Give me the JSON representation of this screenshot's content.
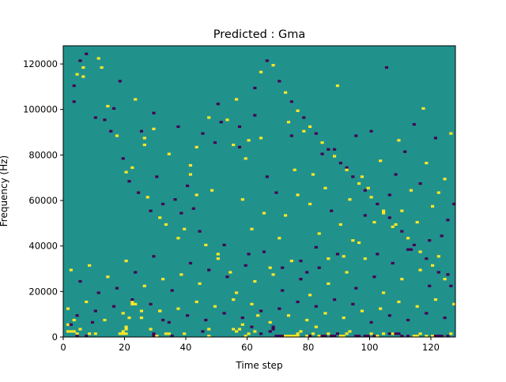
{
  "chart_data": {
    "type": "heatmap",
    "title": "Predicted : Gma",
    "xlabel": "Time step",
    "ylabel": "Frequency (Hz)",
    "xlim": [
      0,
      128
    ],
    "ylim": [
      0,
      128000
    ],
    "xticks": [
      0,
      20,
      40,
      60,
      80,
      100,
      120
    ],
    "yticks": [
      0,
      20000,
      40000,
      60000,
      80000,
      100000,
      120000
    ],
    "n_time_steps": 128,
    "n_freq_bins": 128,
    "grid": false,
    "legend": "none",
    "colormap": "viridis",
    "colors": {
      "background": "#21918c",
      "low": "#440154",
      "high": "#fde725"
    },
    "background_level": 0,
    "levels_note": "cells not listed are background; 1 = yellow (high), -1 = dark purple (low)",
    "cells": [
      [
        1,
        2,
        1
      ],
      [
        2,
        2,
        1
      ],
      [
        3,
        2,
        1
      ],
      [
        1,
        5,
        1
      ],
      [
        2,
        5,
        -1
      ],
      [
        3,
        7,
        1
      ],
      [
        4,
        1,
        1
      ],
      [
        4,
        0,
        -1
      ],
      [
        5,
        3,
        1
      ],
      [
        7,
        0,
        -1
      ],
      [
        8,
        1,
        1
      ],
      [
        9,
        6,
        -1
      ],
      [
        10,
        1,
        1
      ],
      [
        18,
        1,
        1
      ],
      [
        19,
        1,
        1
      ],
      [
        19,
        2,
        1
      ],
      [
        20,
        3,
        1
      ],
      [
        20,
        4,
        1
      ],
      [
        20,
        1,
        1
      ],
      [
        21,
        8,
        1
      ],
      [
        22,
        14,
        1
      ],
      [
        23,
        14,
        1
      ],
      [
        22,
        15,
        1
      ],
      [
        25,
        11,
        1
      ],
      [
        28,
        3,
        1
      ],
      [
        29,
        0,
        -1
      ],
      [
        29,
        1,
        -1
      ],
      [
        30,
        0,
        1
      ],
      [
        31,
        11,
        1
      ],
      [
        32,
        7,
        -1
      ],
      [
        33,
        1,
        1
      ],
      [
        34,
        1,
        1
      ],
      [
        35,
        0,
        -1
      ],
      [
        39,
        1,
        1
      ],
      [
        45,
        2,
        -1
      ],
      [
        47,
        3,
        1
      ],
      [
        47,
        0,
        1
      ],
      [
        55,
        3,
        1
      ],
      [
        56,
        2,
        1
      ],
      [
        57,
        3,
        1
      ],
      [
        58,
        5,
        1
      ],
      [
        59,
        0,
        1
      ],
      [
        60,
        1,
        1
      ],
      [
        61,
        4,
        -1
      ],
      [
        62,
        2,
        1
      ],
      [
        63,
        9,
        1
      ],
      [
        64,
        1,
        -1
      ],
      [
        67,
        2,
        -1
      ],
      [
        68,
        4,
        -1
      ],
      [
        68,
        3,
        -1
      ],
      [
        69,
        0,
        -1
      ],
      [
        70,
        0,
        -1
      ],
      [
        71,
        0,
        -1
      ],
      [
        72,
        0,
        1
      ],
      [
        73,
        0,
        1
      ],
      [
        74,
        0,
        1
      ],
      [
        75,
        0,
        1
      ],
      [
        76,
        0,
        1
      ],
      [
        76,
        1,
        1
      ],
      [
        77,
        2,
        1
      ],
      [
        79,
        0,
        1
      ],
      [
        80,
        0,
        -1
      ],
      [
        81,
        1,
        1
      ],
      [
        82,
        4,
        1
      ],
      [
        83,
        0,
        1
      ],
      [
        84,
        0,
        -1
      ],
      [
        85,
        0,
        -1
      ],
      [
        86,
        1,
        1
      ],
      [
        87,
        0,
        -1
      ],
      [
        88,
        0,
        -1
      ],
      [
        89,
        1,
        -1
      ],
      [
        90,
        0,
        1
      ],
      [
        91,
        0,
        1
      ],
      [
        92,
        1,
        1
      ],
      [
        93,
        2,
        1
      ],
      [
        95,
        0,
        -1
      ],
      [
        96,
        0,
        -1
      ],
      [
        98,
        0,
        -1
      ],
      [
        99,
        0,
        -1
      ],
      [
        100,
        1,
        1
      ],
      [
        101,
        0,
        -1
      ],
      [
        102,
        0,
        1
      ],
      [
        104,
        1,
        1
      ],
      [
        106,
        1,
        -1
      ],
      [
        107,
        1,
        1
      ],
      [
        108,
        1,
        -1
      ],
      [
        109,
        1,
        -1
      ],
      [
        110,
        0,
        -1
      ],
      [
        112,
        0,
        -1
      ],
      [
        114,
        0,
        1
      ],
      [
        115,
        0,
        1
      ],
      [
        116,
        1,
        1
      ],
      [
        118,
        0,
        1
      ],
      [
        120,
        0,
        1
      ],
      [
        121,
        0,
        -1
      ],
      [
        122,
        0,
        -1
      ],
      [
        123,
        0,
        -1
      ],
      [
        125,
        0,
        -1
      ],
      [
        126,
        1,
        1
      ],
      [
        3,
        110,
        -1
      ],
      [
        4,
        115,
        1
      ],
      [
        5,
        121,
        -1
      ],
      [
        6,
        118,
        1
      ],
      [
        7,
        124,
        -1
      ],
      [
        11,
        122,
        1
      ],
      [
        13,
        95,
        -1
      ],
      [
        14,
        101,
        1
      ],
      [
        16,
        100,
        -1
      ],
      [
        17,
        88,
        1
      ],
      [
        19,
        78,
        -1
      ],
      [
        20,
        72,
        1
      ],
      [
        21,
        68,
        -1
      ],
      [
        22,
        74,
        1
      ],
      [
        24,
        63,
        -1
      ],
      [
        25,
        90,
        -1
      ],
      [
        26,
        84,
        1
      ],
      [
        27,
        61,
        1
      ],
      [
        28,
        55,
        -1
      ],
      [
        29,
        91,
        1
      ],
      [
        30,
        70,
        -1
      ],
      [
        31,
        52,
        1
      ],
      [
        32,
        58,
        -1
      ],
      [
        33,
        49,
        1
      ],
      [
        36,
        60,
        -1
      ],
      [
        37,
        43,
        1
      ],
      [
        38,
        54,
        -1
      ],
      [
        39,
        47,
        1
      ],
      [
        40,
        66,
        -1
      ],
      [
        41,
        71,
        1
      ],
      [
        42,
        56,
        -1
      ],
      [
        43,
        62,
        1
      ],
      [
        44,
        46,
        -1
      ],
      [
        46,
        40,
        1
      ],
      [
        48,
        64,
        1
      ],
      [
        49,
        85,
        -1
      ],
      [
        50,
        34,
        1
      ],
      [
        51,
        94,
        -1
      ],
      [
        52,
        40,
        -1
      ],
      [
        54,
        28,
        1
      ],
      [
        56,
        104,
        1
      ],
      [
        57,
        83,
        -1
      ],
      [
        58,
        60,
        1
      ],
      [
        59,
        78,
        1
      ],
      [
        60,
        36,
        -1
      ],
      [
        61,
        47,
        1
      ],
      [
        62,
        97,
        -1
      ],
      [
        64,
        87,
        1
      ],
      [
        65,
        54,
        1
      ],
      [
        66,
        70,
        -1
      ],
      [
        67,
        30,
        1
      ],
      [
        69,
        63,
        -1
      ],
      [
        70,
        43,
        1
      ],
      [
        71,
        30,
        -1
      ],
      [
        72,
        53,
        1
      ],
      [
        73,
        94,
        1
      ],
      [
        74,
        88,
        -1
      ],
      [
        75,
        73,
        1
      ],
      [
        76,
        62,
        1
      ],
      [
        77,
        33,
        -1
      ],
      [
        78,
        90,
        1
      ],
      [
        79,
        28,
        -1
      ],
      [
        80,
        58,
        1
      ],
      [
        81,
        71,
        1
      ],
      [
        82,
        39,
        -1
      ],
      [
        83,
        45,
        1
      ],
      [
        84,
        80,
        -1
      ],
      [
        85,
        65,
        1
      ],
      [
        86,
        34,
        1
      ],
      [
        87,
        55,
        -1
      ],
      [
        88,
        82,
        -1
      ],
      [
        89,
        110,
        1
      ],
      [
        90,
        49,
        1
      ],
      [
        91,
        35,
        1
      ],
      [
        92,
        74,
        -1
      ],
      [
        93,
        60,
        1
      ],
      [
        94,
        42,
        1
      ],
      [
        95,
        88,
        -1
      ],
      [
        96,
        41,
        1
      ],
      [
        97,
        70,
        1
      ],
      [
        98,
        53,
        -1
      ],
      [
        99,
        65,
        1
      ],
      [
        100,
        90,
        -1
      ],
      [
        101,
        50,
        1
      ],
      [
        102,
        36,
        -1
      ],
      [
        103,
        77,
        1
      ],
      [
        104,
        54,
        1
      ],
      [
        105,
        118,
        -1
      ],
      [
        106,
        62,
        -1
      ],
      [
        107,
        48,
        1
      ],
      [
        108,
        71,
        -1
      ],
      [
        109,
        86,
        1
      ],
      [
        110,
        55,
        1
      ],
      [
        111,
        81,
        -1
      ],
      [
        112,
        38,
        -1
      ],
      [
        113,
        64,
        1
      ],
      [
        114,
        93,
        -1
      ],
      [
        115,
        50,
        1
      ],
      [
        116,
        67,
        -1
      ],
      [
        117,
        100,
        1
      ],
      [
        118,
        76,
        1
      ],
      [
        119,
        42,
        -1
      ],
      [
        120,
        57,
        1
      ],
      [
        121,
        87,
        -1
      ],
      [
        122,
        63,
        1
      ],
      [
        123,
        44,
        -1
      ],
      [
        124,
        69,
        1
      ],
      [
        125,
        51,
        -1
      ],
      [
        126,
        89,
        1
      ],
      [
        127,
        58,
        -1
      ],
      [
        3,
        103,
        -1
      ],
      [
        6,
        114,
        1
      ],
      [
        10,
        96,
        -1
      ],
      [
        12,
        118,
        1
      ],
      [
        15,
        90,
        -1
      ],
      [
        18,
        112,
        -1
      ],
      [
        23,
        104,
        1
      ],
      [
        26,
        87,
        1
      ],
      [
        29,
        98,
        -1
      ],
      [
        34,
        80,
        1
      ],
      [
        37,
        92,
        -1
      ],
      [
        41,
        75,
        1
      ],
      [
        43,
        83,
        1
      ],
      [
        45,
        89,
        -1
      ],
      [
        47,
        96,
        1
      ],
      [
        50,
        102,
        -1
      ],
      [
        53,
        95,
        1
      ],
      [
        55,
        84,
        1
      ],
      [
        57,
        92,
        -1
      ],
      [
        60,
        86,
        1
      ],
      [
        62,
        109,
        -1
      ],
      [
        64,
        116,
        1
      ],
      [
        66,
        121,
        -1
      ],
      [
        68,
        119,
        1
      ],
      [
        70,
        112,
        -1
      ],
      [
        72,
        107,
        1
      ],
      [
        74,
        103,
        -1
      ],
      [
        76,
        99,
        1
      ],
      [
        78,
        96,
        -1
      ],
      [
        80,
        92,
        1
      ],
      [
        82,
        89,
        -1
      ],
      [
        84,
        85,
        1
      ],
      [
        86,
        82,
        -1
      ],
      [
        88,
        79,
        1
      ],
      [
        90,
        76,
        -1
      ],
      [
        92,
        73,
        1
      ],
      [
        94,
        70,
        -1
      ],
      [
        96,
        67,
        1
      ],
      [
        98,
        64,
        -1
      ],
      [
        100,
        61,
        1
      ],
      [
        102,
        58,
        -1
      ],
      [
        104,
        55,
        1
      ],
      [
        106,
        52,
        -1
      ],
      [
        108,
        49,
        1
      ],
      [
        110,
        46,
        -1
      ],
      [
        112,
        43,
        1
      ],
      [
        114,
        40,
        -1
      ],
      [
        116,
        37,
        1
      ],
      [
        118,
        34,
        -1
      ],
      [
        120,
        31,
        1
      ],
      [
        122,
        28,
        -1
      ],
      [
        124,
        25,
        1
      ],
      [
        126,
        22,
        -1
      ],
      [
        2,
        29,
        1
      ],
      [
        5,
        24,
        -1
      ],
      [
        8,
        31,
        1
      ],
      [
        11,
        19,
        -1
      ],
      [
        14,
        26,
        1
      ],
      [
        17,
        21,
        -1
      ],
      [
        20,
        33,
        1
      ],
      [
        23,
        28,
        -1
      ],
      [
        26,
        22,
        1
      ],
      [
        29,
        35,
        -1
      ],
      [
        32,
        25,
        1
      ],
      [
        35,
        20,
        -1
      ],
      [
        38,
        27,
        1
      ],
      [
        41,
        32,
        -1
      ],
      [
        44,
        23,
        1
      ],
      [
        47,
        29,
        -1
      ],
      [
        50,
        36,
        1
      ],
      [
        53,
        26,
        -1
      ],
      [
        56,
        19,
        1
      ],
      [
        59,
        31,
        -1
      ],
      [
        62,
        24,
        1
      ],
      [
        65,
        37,
        -1
      ],
      [
        68,
        27,
        1
      ],
      [
        71,
        20,
        -1
      ],
      [
        74,
        33,
        1
      ],
      [
        77,
        25,
        -1
      ],
      [
        80,
        18,
        1
      ],
      [
        83,
        30,
        -1
      ],
      [
        86,
        23,
        1
      ],
      [
        89,
        36,
        -1
      ],
      [
        92,
        28,
        1
      ],
      [
        95,
        21,
        -1
      ],
      [
        98,
        34,
        1
      ],
      [
        101,
        26,
        -1
      ],
      [
        104,
        19,
        1
      ],
      [
        107,
        32,
        -1
      ],
      [
        110,
        25,
        1
      ],
      [
        113,
        38,
        -1
      ],
      [
        116,
        29,
        1
      ],
      [
        119,
        22,
        -1
      ],
      [
        122,
        35,
        1
      ],
      [
        125,
        27,
        -1
      ],
      [
        1,
        12,
        1
      ],
      [
        4,
        9,
        -1
      ],
      [
        7,
        15,
        1
      ],
      [
        10,
        11,
        -1
      ],
      [
        13,
        7,
        1
      ],
      [
        16,
        13,
        -1
      ],
      [
        19,
        10,
        1
      ],
      [
        22,
        16,
        -1
      ],
      [
        25,
        8,
        1
      ],
      [
        28,
        14,
        -1
      ],
      [
        31,
        11,
        1
      ],
      [
        34,
        6,
        -1
      ],
      [
        37,
        12,
        1
      ],
      [
        40,
        9,
        -1
      ],
      [
        43,
        15,
        1
      ],
      [
        46,
        7,
        -1
      ],
      [
        49,
        13,
        1
      ],
      [
        52,
        10,
        -1
      ],
      [
        55,
        16,
        1
      ],
      [
        58,
        8,
        -1
      ],
      [
        61,
        14,
        1
      ],
      [
        64,
        11,
        -1
      ],
      [
        67,
        6,
        1
      ],
      [
        70,
        12,
        -1
      ],
      [
        73,
        9,
        1
      ],
      [
        76,
        15,
        -1
      ],
      [
        79,
        7,
        1
      ],
      [
        82,
        13,
        -1
      ],
      [
        85,
        10,
        1
      ],
      [
        88,
        16,
        -1
      ],
      [
        91,
        8,
        1
      ],
      [
        94,
        14,
        -1
      ],
      [
        97,
        11,
        1
      ],
      [
        100,
        6,
        -1
      ],
      [
        103,
        12,
        1
      ],
      [
        106,
        9,
        -1
      ],
      [
        109,
        15,
        1
      ],
      [
        112,
        7,
        -1
      ],
      [
        115,
        13,
        1
      ],
      [
        118,
        10,
        -1
      ],
      [
        121,
        16,
        1
      ],
      [
        124,
        8,
        -1
      ],
      [
        127,
        14,
        1
      ]
    ]
  }
}
